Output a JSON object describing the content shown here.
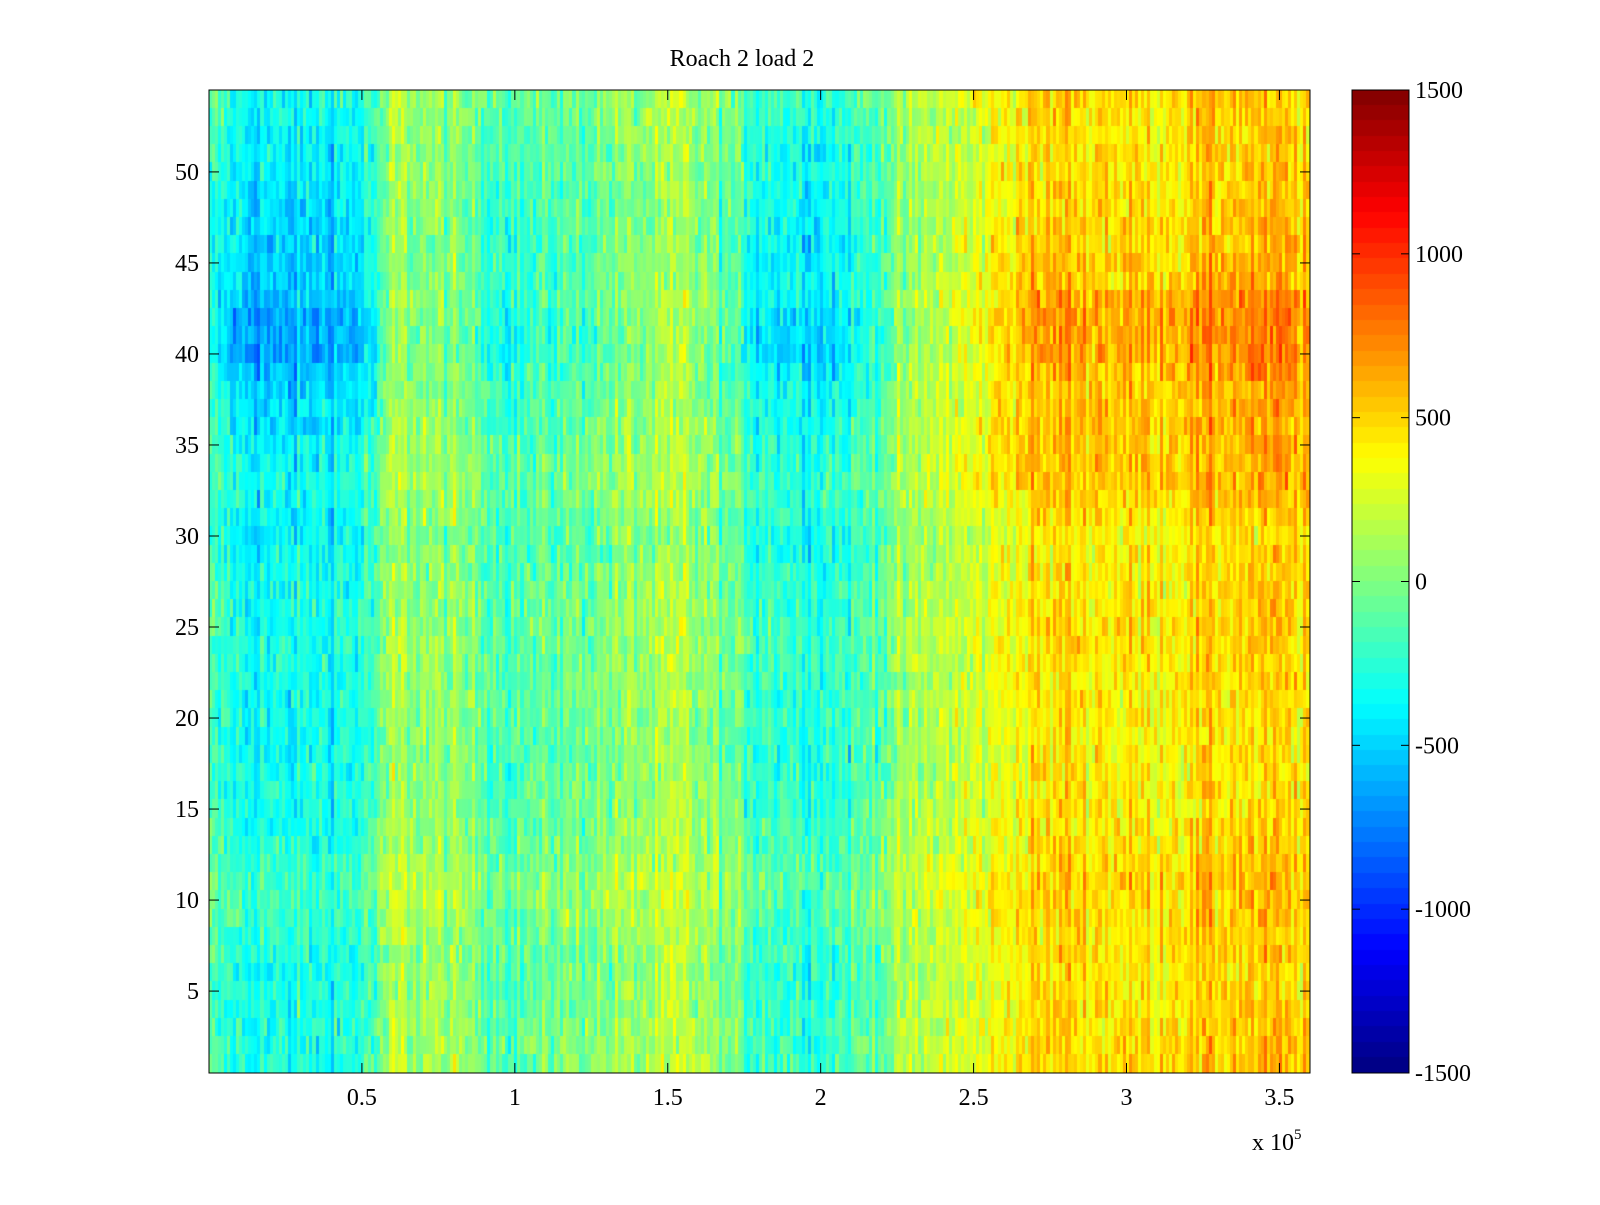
{
  "chart_data": {
    "type": "heatmap",
    "title": "Roach 2 load 2",
    "xlabel": "",
    "ylabel": "",
    "x_exponent_label": "x 10",
    "x_exponent_power": "5",
    "xlim": [
      0,
      3.6
    ],
    "ylim": [
      0.5,
      54.5
    ],
    "x_ticks": [
      0.5,
      1,
      1.5,
      2,
      2.5,
      3,
      3.5
    ],
    "x_tick_labels": [
      "0.5",
      "1",
      "1.5",
      "2",
      "2.5",
      "3",
      "3.5"
    ],
    "y_ticks": [
      5,
      10,
      15,
      20,
      25,
      30,
      35,
      40,
      45,
      50
    ],
    "y_tick_labels": [
      "5",
      "10",
      "15",
      "20",
      "25",
      "30",
      "35",
      "40",
      "45",
      "50"
    ],
    "rows": 54,
    "columns": 360,
    "x_unit_scale": 100000,
    "colormap": "jet",
    "colorbar": {
      "clim": [
        -1500,
        1500
      ],
      "ticks": [
        -1500,
        -1000,
        -500,
        0,
        500,
        1000,
        1500
      ],
      "tick_labels": [
        "-1500",
        "-1000",
        "-500",
        "0",
        "500",
        "1000",
        "1500"
      ]
    },
    "column_means": {
      "x_breakpoints": [
        0,
        0.1,
        0.25,
        0.5,
        0.57,
        0.6,
        0.8,
        1.0,
        1.2,
        1.4,
        1.55,
        1.65,
        1.8,
        2.0,
        2.1,
        2.25,
        2.4,
        2.55,
        2.6,
        2.8,
        3.0,
        3.2,
        3.4,
        3.6
      ],
      "values": [
        -200,
        -330,
        -380,
        -300,
        -100,
        100,
        20,
        -150,
        -60,
        40,
        110,
        0,
        -200,
        -260,
        -220,
        20,
        180,
        260,
        380,
        480,
        420,
        460,
        520,
        470
      ]
    },
    "row_offsets": {
      "y_breakpoints": [
        1,
        3,
        6,
        9,
        11,
        13,
        18,
        24,
        27,
        30,
        33,
        35,
        38,
        40,
        42,
        43,
        46,
        49,
        52,
        54
      ],
      "values": [
        60,
        40,
        10,
        80,
        120,
        40,
        -20,
        30,
        10,
        -40,
        60,
        20,
        -30,
        -80,
        -60,
        -30,
        -60,
        -40,
        -10,
        30
      ]
    },
    "row_contrast": {
      "y_breakpoints": [
        1,
        10,
        30,
        38,
        40,
        42,
        44,
        48,
        54
      ],
      "values": [
        1.0,
        0.9,
        1.0,
        1.3,
        1.6,
        1.6,
        1.35,
        1.2,
        1.0
      ]
    },
    "noise_amplitude": 240
  }
}
